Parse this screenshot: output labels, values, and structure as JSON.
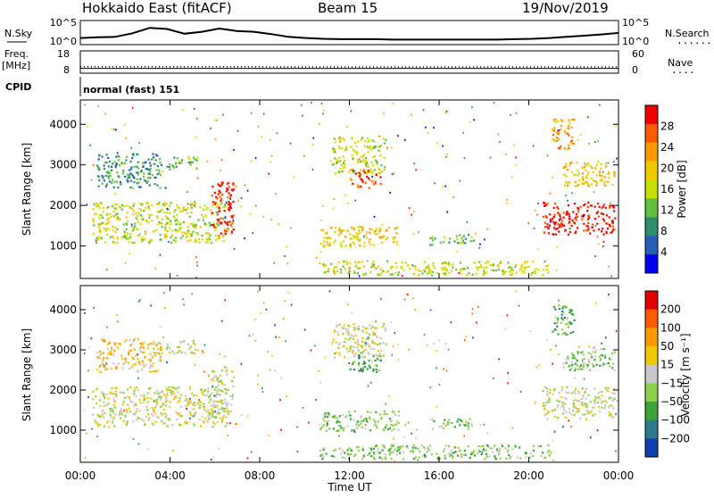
{
  "header": {
    "radar": "Hokkaido East (fitACF)",
    "beam": "Beam 15",
    "date": "19/Nov/2019"
  },
  "chart_data": [
    {
      "type": "line",
      "name_label": "N.Sky",
      "right_label": "N.Search",
      "left_ticks": [
        "10^5",
        "10^0"
      ],
      "right_ticks": [
        "10^5",
        "10^0"
      ],
      "series": [
        {
          "values": [
            1.0,
            1.2,
            1.3,
            2.2,
            3.6,
            3.3,
            2.1,
            2.6,
            3.4,
            2.8,
            2.6,
            2.0,
            1.3,
            1.0,
            0.8,
            0.7,
            0.7,
            0.7,
            0.6,
            0.6,
            0.6,
            0.6,
            0.6,
            0.6,
            0.6,
            0.7,
            0.8,
            1.0,
            1.3,
            1.6,
            1.9,
            2.3
          ]
        }
      ]
    },
    {
      "type": "line",
      "name_label": "Freq.",
      "unit_label": "[MHz]",
      "left_ticks": [
        "18",
        "8"
      ],
      "right_ticks": [
        "60",
        "0"
      ],
      "right_label": "Nave",
      "series": [
        {
          "name": "Freq",
          "values": [
            11,
            11,
            11,
            11,
            11,
            11,
            11,
            11
          ]
        },
        {
          "name": "Nave",
          "values": [
            22,
            22,
            22,
            21,
            21,
            21,
            21,
            21
          ]
        }
      ]
    },
    {
      "type": "table",
      "label": "CPID",
      "value": "normal (fast) 151"
    },
    {
      "type": "heatmap",
      "ylabel": "Slant Range [km]",
      "yticks": [
        "4000",
        "3000",
        "2000",
        "1000"
      ],
      "ylim": [
        200,
        4600
      ],
      "colorbar_label": "Power [dB]",
      "colorbar_ticks": [
        "28",
        "24",
        "20",
        "16",
        "12",
        "8",
        "4"
      ],
      "colors": [
        "#f00000",
        "#ff5a00",
        "#ff9a00",
        "#f0c800",
        "#c8e000",
        "#60c040",
        "#2f8f6a",
        "#2860b8",
        "#0000f0"
      ],
      "regions": [
        {
          "x": [
            0.5,
            6.5
          ],
          "y": [
            1100,
            2100
          ],
          "level": 4
        },
        {
          "x": [
            0.7,
            3.6
          ],
          "y": [
            2450,
            3300
          ],
          "level": 6
        },
        {
          "x": [
            3.8,
            5.2
          ],
          "y": [
            2900,
            3250
          ],
          "level": 5
        },
        {
          "x": [
            5.8,
            6.8
          ],
          "y": [
            1300,
            2600
          ],
          "level": 0
        },
        {
          "x": [
            11.2,
            13.6
          ],
          "y": [
            2800,
            3700
          ],
          "level": 4
        },
        {
          "x": [
            12.0,
            13.4
          ],
          "y": [
            2450,
            2900
          ],
          "level": 1
        },
        {
          "x": [
            10.6,
            14.2
          ],
          "y": [
            1000,
            1500
          ],
          "level": 3
        },
        {
          "x": [
            15.5,
            17.5
          ],
          "y": [
            1050,
            1300
          ],
          "level": 5
        },
        {
          "x": [
            10.6,
            21.0
          ],
          "y": [
            300,
            650
          ],
          "level": 4
        },
        {
          "x": [
            20.6,
            23.9
          ],
          "y": [
            1300,
            2100
          ],
          "level": 0
        },
        {
          "x": [
            21.0,
            22.0
          ],
          "y": [
            3400,
            4150
          ],
          "level": 2
        },
        {
          "x": [
            21.5,
            23.8
          ],
          "y": [
            2500,
            3100
          ],
          "level": 3
        }
      ]
    },
    {
      "type": "heatmap",
      "ylabel": "Slant Range [km]",
      "yticks": [
        "4000",
        "3000",
        "2000",
        "1000"
      ],
      "ylim": [
        200,
        4600
      ],
      "colorbar_label": "Velocity [m s⁻¹]",
      "colorbar_ticks": [
        "200",
        "100",
        "50",
        "15",
        "−15",
        "−50",
        "−100",
        "−200"
      ],
      "colors": [
        "#e00000",
        "#ff5a00",
        "#ff9a00",
        "#f0c800",
        "#c8c8c8",
        "#8ed04a",
        "#3aa43a",
        "#2c7a8a",
        "#1040b0"
      ],
      "regions": [
        {
          "x": [
            0.5,
            6.5
          ],
          "y": [
            1100,
            2100
          ],
          "level": 4
        },
        {
          "x": [
            0.7,
            3.6
          ],
          "y": [
            2450,
            3300
          ],
          "level": 3
        },
        {
          "x": [
            3.8,
            5.2
          ],
          "y": [
            2900,
            3250
          ],
          "level": 4
        },
        {
          "x": [
            5.8,
            6.8
          ],
          "y": [
            1300,
            2600
          ],
          "level": 4
        },
        {
          "x": [
            11.2,
            13.6
          ],
          "y": [
            2800,
            3700
          ],
          "level": 4
        },
        {
          "x": [
            12.0,
            13.4
          ],
          "y": [
            2450,
            2900
          ],
          "level": 6
        },
        {
          "x": [
            10.6,
            14.2
          ],
          "y": [
            1000,
            1500
          ],
          "level": 5
        },
        {
          "x": [
            15.5,
            17.5
          ],
          "y": [
            1050,
            1300
          ],
          "level": 5
        },
        {
          "x": [
            10.6,
            21.0
          ],
          "y": [
            300,
            650
          ],
          "level": 5
        },
        {
          "x": [
            20.6,
            23.9
          ],
          "y": [
            1300,
            2100
          ],
          "level": 4
        },
        {
          "x": [
            21.0,
            22.0
          ],
          "y": [
            3400,
            4150
          ],
          "level": 6
        },
        {
          "x": [
            21.5,
            23.8
          ],
          "y": [
            2500,
            3100
          ],
          "level": 5
        }
      ]
    }
  ],
  "xaxis": {
    "label": "Time UT",
    "ticks": [
      "00:00",
      "04:00",
      "08:00",
      "12:00",
      "16:00",
      "20:00",
      "00:00"
    ],
    "xlim": [
      0,
      24
    ]
  },
  "legend": {
    "nsearch_marker": ".......",
    "nave_marker": "...."
  }
}
